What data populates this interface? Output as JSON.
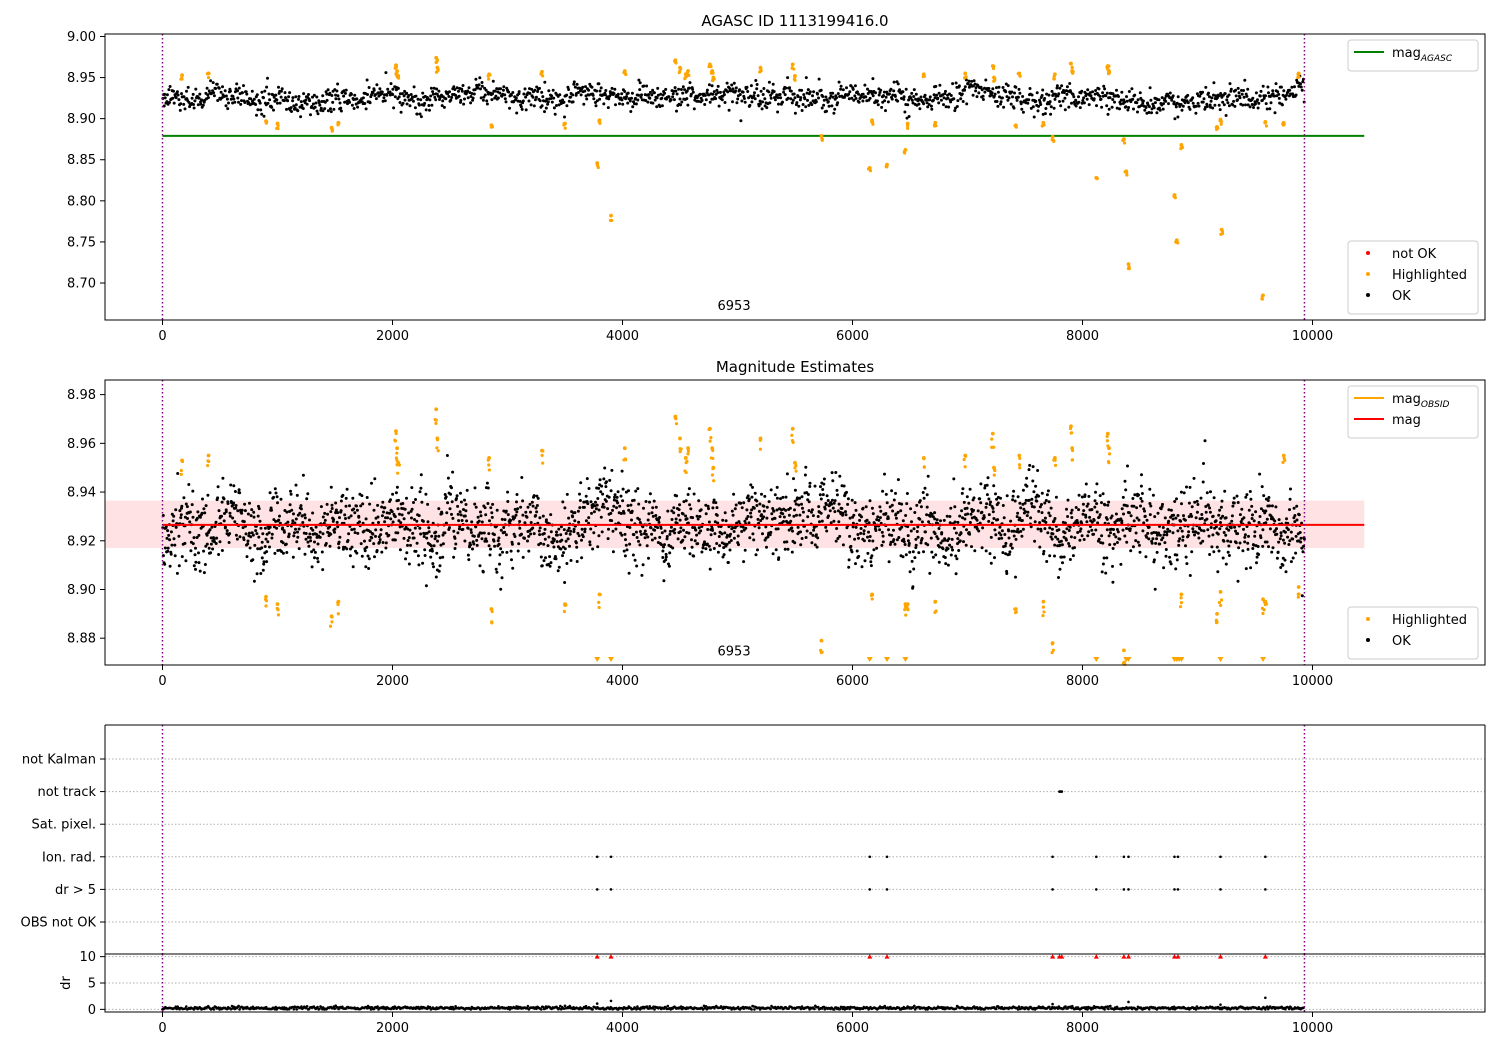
{
  "chart_data": [
    {
      "type": "scatter",
      "title": "AGASC ID 1113199416.0",
      "xlabel": "",
      "ylabel": "",
      "xlim": [
        -500,
        11500
      ],
      "ylim": [
        8.655,
        9.003
      ],
      "xticks": [
        0,
        2000,
        4000,
        6000,
        8000,
        10000
      ],
      "xtick_labels": [
        "0",
        "2000",
        "4000",
        "6000",
        "8000",
        "10000"
      ],
      "yticks": [
        8.7,
        8.75,
        8.8,
        8.85,
        8.9,
        8.95,
        9.0
      ],
      "ytick_labels": [
        "8.70",
        "8.75",
        "8.80",
        "8.85",
        "8.90",
        "8.95",
        "9.00"
      ],
      "vlines": [
        0,
        9930
      ],
      "annotation": {
        "text": "6953",
        "x": 4970,
        "y": 8.667
      },
      "lines": [
        {
          "name": "mag",
          "subscript": "AGASC",
          "color": "#008000",
          "x": [
            0,
            10450
          ],
          "y": [
            8.879,
            8.879
          ]
        }
      ],
      "band": null,
      "ok_points": {
        "x_range": [
          0,
          9930
        ],
        "center": 8.926,
        "spread": 0.0085,
        "count": 1700
      },
      "series": [
        {
          "name": "Highlighted",
          "color": "#ffa500",
          "x": [
            170,
            400,
            900,
            1000,
            1470,
            1530,
            2030,
            2040,
            2050,
            2380,
            2390,
            2840,
            2860,
            3300,
            3500,
            3780,
            3800,
            3900,
            4020,
            4460,
            4500,
            4550,
            4570,
            4760,
            4780,
            4790,
            5200,
            5480,
            5500,
            5730,
            6150,
            6170,
            6300,
            6460,
            6480,
            6620,
            6720,
            6980,
            7220,
            7230,
            7420,
            7450,
            7660,
            7740,
            7760,
            7900,
            7910,
            8120,
            8220,
            8230,
            8360,
            8380,
            8400,
            8800,
            8820,
            8860,
            9170,
            9200,
            9210,
            9570,
            9590,
            9750,
            9880
          ],
          "y": [
            8.953,
            8.955,
            8.897,
            8.894,
            8.889,
            8.895,
            8.965,
            8.958,
            8.952,
            8.974,
            8.962,
            8.954,
            8.892,
            8.957,
            8.894,
            8.846,
            8.898,
            8.782,
            8.958,
            8.971,
            8.962,
            8.954,
            8.958,
            8.966,
            8.958,
            8.95,
            8.962,
            8.966,
            8.952,
            8.879,
            8.84,
            8.898,
            8.844,
            8.862,
            8.894,
            8.954,
            8.895,
            8.955,
            8.964,
            8.95,
            8.892,
            8.955,
            8.895,
            8.878,
            8.954,
            8.967,
            8.958,
            8.828,
            8.964,
            8.958,
            8.875,
            8.836,
            8.723,
            8.807,
            8.752,
            8.868,
            8.89,
            8.899,
            8.765,
            8.685,
            8.896,
            8.895,
            8.955
          ]
        },
        {
          "name": "OK",
          "color": "#000000",
          "x": [],
          "y": []
        }
      ],
      "legend": {
        "placement": "upper right",
        "entries": [
          {
            "label": "mag",
            "subscript": "AGASC",
            "color": "#008000",
            "kind": "line"
          }
        ]
      },
      "legend2": {
        "placement": "lower right",
        "entries": [
          {
            "label": "not OK",
            "color": "#ff0000",
            "kind": "dot"
          },
          {
            "label": "Highlighted",
            "color": "#ffa500",
            "kind": "dot"
          },
          {
            "label": "OK",
            "color": "#000000",
            "kind": "dot"
          }
        ]
      }
    },
    {
      "type": "scatter",
      "title": "Magnitude Estimates",
      "xlabel": "",
      "ylabel": "",
      "xlim": [
        -500,
        11500
      ],
      "ylim": [
        8.869,
        8.986
      ],
      "xticks": [
        0,
        2000,
        4000,
        6000,
        8000,
        10000
      ],
      "xtick_labels": [
        "0",
        "2000",
        "4000",
        "6000",
        "8000",
        "10000"
      ],
      "yticks": [
        8.88,
        8.9,
        8.92,
        8.94,
        8.96,
        8.98
      ],
      "ytick_labels": [
        "8.88",
        "8.90",
        "8.92",
        "8.94",
        "8.96",
        "8.98"
      ],
      "vlines": [
        0,
        9930
      ],
      "annotation": {
        "text": "6953",
        "x": 4970,
        "y": 8.873
      },
      "lines": [
        {
          "name": "mag",
          "subscript": "",
          "color": "#ff0000",
          "x": [
            0,
            10450
          ],
          "y": [
            8.9265,
            8.9265
          ]
        }
      ],
      "band": {
        "x": [
          -500,
          10450
        ],
        "y": [
          8.917,
          8.9365
        ],
        "color": "#ffdfe0"
      },
      "obsid_segments": {
        "color": "#ffa500"
      },
      "ok_points": {
        "x_range": [
          0,
          9930
        ],
        "center": 8.926,
        "spread": 0.0085,
        "count": 2600
      },
      "series": [
        {
          "name": "Highlighted",
          "color": "#ffa500",
          "x": [
            170,
            400,
            900,
            1000,
            1470,
            1530,
            2030,
            2040,
            2050,
            2380,
            2390,
            2840,
            2860,
            3300,
            3500,
            3800,
            4020,
            4460,
            4500,
            4550,
            4570,
            4760,
            4780,
            4790,
            5200,
            5480,
            5500,
            5730,
            6170,
            6460,
            6480,
            6620,
            6720,
            6980,
            7220,
            7230,
            7420,
            7450,
            7660,
            7740,
            7760,
            7900,
            7910,
            8220,
            8230,
            8360,
            8860,
            9170,
            9200,
            9570,
            9590,
            9750,
            9880
          ],
          "y": [
            8.953,
            8.955,
            8.897,
            8.894,
            8.889,
            8.895,
            8.965,
            8.958,
            8.952,
            8.974,
            8.962,
            8.954,
            8.892,
            8.957,
            8.894,
            8.898,
            8.958,
            8.971,
            8.962,
            8.954,
            8.958,
            8.966,
            8.958,
            8.95,
            8.962,
            8.966,
            8.952,
            8.879,
            8.898,
            8.894,
            8.894,
            8.954,
            8.895,
            8.955,
            8.964,
            8.95,
            8.892,
            8.955,
            8.895,
            8.878,
            8.954,
            8.967,
            8.958,
            8.964,
            8.958,
            8.875,
            8.898,
            8.89,
            8.899,
            8.896,
            8.895,
            8.955,
            8.901
          ]
        },
        {
          "name": "OK",
          "color": "#000000",
          "x": [],
          "y": []
        }
      ],
      "below_range_markers": {
        "color": "#ffa500",
        "x": [
          3780,
          3900,
          6150,
          6300,
          6460,
          8120,
          8380,
          8400,
          8800,
          8820,
          8840,
          8860,
          9200,
          9570
        ]
      },
      "legend": {
        "placement": "upper right",
        "entries": [
          {
            "label": "mag",
            "subscript": "OBSID",
            "color": "#ffa500",
            "kind": "line"
          },
          {
            "label": "mag",
            "subscript": "",
            "color": "#ff0000",
            "kind": "line"
          }
        ]
      },
      "legend2": {
        "placement": "lower right",
        "entries": [
          {
            "label": "Highlighted",
            "color": "#ffa500",
            "kind": "dot"
          },
          {
            "label": "OK",
            "color": "#000000",
            "kind": "dot"
          }
        ]
      }
    },
    {
      "type": "scatter",
      "title": "",
      "xlabel": "",
      "ylabel": "",
      "xlim": [
        -500,
        11500
      ],
      "categories": [
        "not Kalman",
        "not track",
        "Sat. pixel.",
        "Ion. rad.",
        "dr > 5",
        "OBS not OK"
      ],
      "vlines": [
        0,
        9930
      ],
      "points": [
        {
          "category": "not track",
          "x": [
            7800,
            7810,
            7820
          ]
        },
        {
          "category": "Ion. rad.",
          "x": [
            3780,
            3900,
            6150,
            6300,
            7740,
            8120,
            8360,
            8400,
            8800,
            8830,
            9200,
            9590
          ]
        },
        {
          "category": "dr > 5",
          "x": [
            3780,
            3900,
            6150,
            6300,
            7740,
            8120,
            8360,
            8400,
            8800,
            8830,
            9200,
            9590
          ]
        }
      ]
    },
    {
      "type": "scatter",
      "title": "",
      "xlabel": "",
      "ylabel": "dr",
      "xlim": [
        -500,
        11500
      ],
      "ylim": [
        -0.5,
        10.5
      ],
      "yticks": [
        0,
        5,
        10
      ],
      "ytick_labels": [
        "0",
        "5",
        "10"
      ],
      "xticks": [
        0,
        2000,
        4000,
        6000,
        8000,
        10000
      ],
      "xtick_labels": [
        "0",
        "2000",
        "4000",
        "6000",
        "8000",
        "10000"
      ],
      "vlines": [
        0,
        9930
      ],
      "ok_points": {
        "x_range": [
          0,
          9930
        ],
        "center": 0.25,
        "spread": 0.15,
        "count": 1200
      },
      "outliers": {
        "color": "#000000",
        "x": [
          3780,
          3900,
          7740,
          8400,
          9200,
          9590
        ],
        "y": [
          1.1,
          1.6,
          1.0,
          1.4,
          0.9,
          2.2
        ]
      },
      "clipped": {
        "color": "#ff0000",
        "x": [
          3780,
          3900,
          6150,
          6300,
          7740,
          7800,
          7820,
          8120,
          8360,
          8400,
          8800,
          8830,
          9200,
          9590
        ]
      }
    }
  ]
}
